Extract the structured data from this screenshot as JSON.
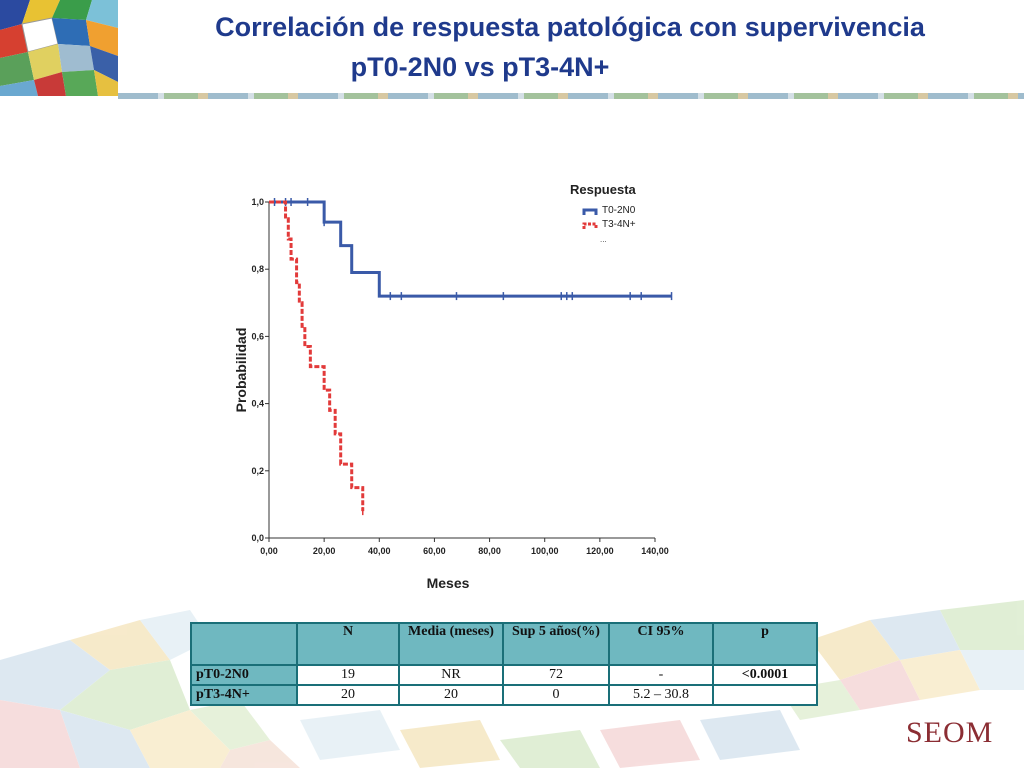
{
  "header": {
    "title_line1": "Correlación de respuesta patológica con supervivencia",
    "title_line2": "pT0-2N0 vs pT3-4N+"
  },
  "colors": {
    "title": "#1f3a8c",
    "series_t02n0": "#3a5aa8",
    "series_t34n": "#e23a3a",
    "table_header": "#6fb8c0",
    "table_border": "#1a6f78",
    "brand": "#8b2d33"
  },
  "chart_data": {
    "type": "line",
    "subtype": "kaplan-meier",
    "xlabel": "Meses",
    "ylabel": "Probabilidad",
    "x_ticks": [
      "0,00",
      "20,00",
      "40,00",
      "60,00",
      "80,00",
      "100,00",
      "120,00",
      "140,00"
    ],
    "y_ticks": [
      "0,0",
      "0,2",
      "0,4",
      "0,6",
      "0,8",
      "1,0"
    ],
    "xlim": [
      0,
      140
    ],
    "ylim": [
      0,
      1
    ],
    "legend_title": "Respuesta",
    "legend_position": "top-right",
    "legend_extra": "...",
    "grid": false,
    "series": [
      {
        "name": "T0-2N0",
        "color": "#3a5aa8",
        "style": "solid",
        "steps": [
          [
            0,
            1.0
          ],
          [
            20,
            0.94
          ],
          [
            26,
            0.87
          ],
          [
            30,
            0.79
          ],
          [
            40,
            0.72
          ],
          [
            146,
            0.72
          ]
        ],
        "censored": [
          [
            2,
            1.0
          ],
          [
            6,
            1.0
          ],
          [
            8,
            1.0
          ],
          [
            14,
            1.0
          ],
          [
            20,
            0.94
          ],
          [
            44,
            0.72
          ],
          [
            48,
            0.72
          ],
          [
            68,
            0.72
          ],
          [
            85,
            0.72
          ],
          [
            106,
            0.72
          ],
          [
            108,
            0.72
          ],
          [
            110,
            0.72
          ],
          [
            131,
            0.72
          ],
          [
            135,
            0.72
          ],
          [
            146,
            0.72
          ]
        ]
      },
      {
        "name": "T3-4N+",
        "color": "#e23a3a",
        "style": "dashed",
        "steps": [
          [
            0,
            1.0
          ],
          [
            6,
            0.95
          ],
          [
            7,
            0.89
          ],
          [
            8,
            0.83
          ],
          [
            10,
            0.76
          ],
          [
            11,
            0.7
          ],
          [
            12,
            0.63
          ],
          [
            13,
            0.57
          ],
          [
            15,
            0.51
          ],
          [
            20,
            0.44
          ],
          [
            22,
            0.38
          ],
          [
            24,
            0.31
          ],
          [
            26,
            0.22
          ],
          [
            30,
            0.15
          ],
          [
            34,
            0.08
          ]
        ],
        "censored": [
          [
            34,
            0.08
          ]
        ]
      }
    ]
  },
  "table": {
    "headers": [
      "",
      "N",
      "Media (meses)",
      "Sup  5 años(%)",
      "CI 95%",
      "p"
    ],
    "rows": [
      [
        "pT0-2N0",
        "19",
        "NR",
        "72",
        "-",
        "<0.0001"
      ],
      [
        "pT3-4N+",
        "20",
        "20",
        "0",
        "5.2 – 30.8",
        ""
      ]
    ]
  },
  "brand": {
    "name": "SEOM"
  }
}
